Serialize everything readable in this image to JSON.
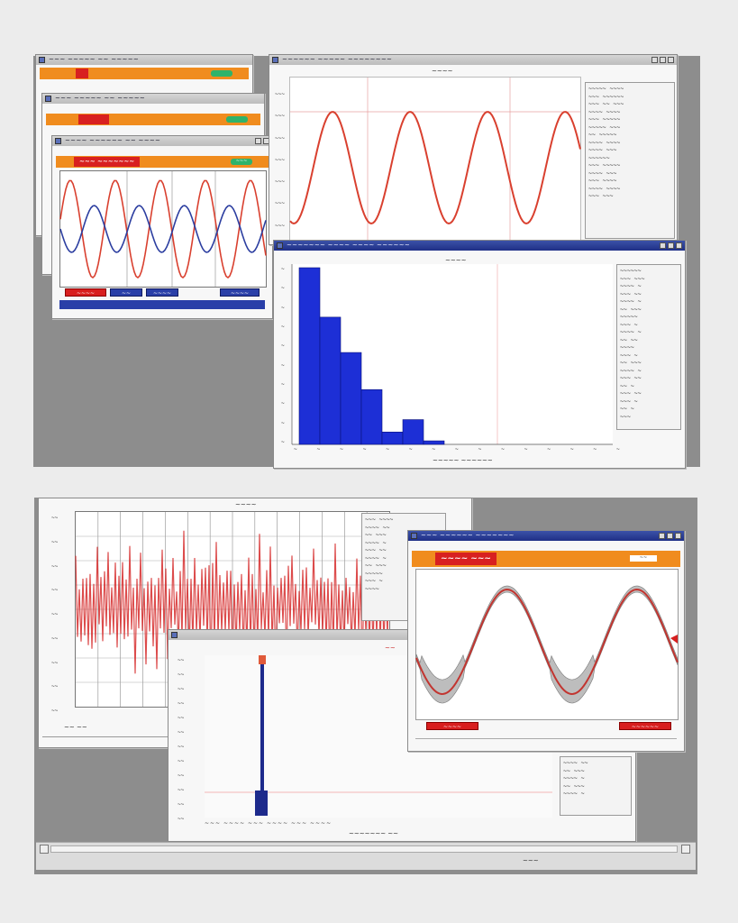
{
  "top_screen": {
    "stacked_windows": [
      {
        "title": "~~~ ~~~~~ ~~ ~~~~~"
      },
      {
        "title": "~~~ ~~~~~ ~~ ~~~~~"
      },
      {
        "title": "~~~ ~~~~~ ~~ ~~~~~"
      }
    ],
    "front_window": {
      "title": "~~~~ ~~~~~~ ~~ ~~~~",
      "header_label": "~~~ ~~~~~~~",
      "header_badge": "~~~",
      "bottom_buttons": [
        "~~~~",
        "~~",
        "~~~~",
        "~~~~"
      ],
      "series_colors": [
        "#d9402f",
        "#2c3ea0"
      ]
    },
    "sine_window": {
      "title": "~~~~~~ ~~~~~ ~~~~~~~~",
      "caption": "~~~~",
      "series_color": "#d9402f",
      "y_ticks": [
        "~~~",
        "~~~",
        "~~~",
        "~~~",
        "~~~",
        "~~~",
        "~~~",
        "~~~"
      ]
    },
    "side_panel": {
      "lines": [
        "~~~~~ ~~~~",
        "~~~ ~~~~~~",
        "~~~ ~~ ~~~",
        "~~~~ ~~~~",
        "~~~ ~~~~~",
        "~~~~~ ~~~",
        "~~ ~~~~~",
        "~~~~ ~~~~",
        "~~~~ ~~~",
        "~~~~~~",
        "~~~ ~~~~~",
        "~~~~ ~~~",
        "~~~ ~~~~",
        "~~~~ ~~~~",
        "~~~ ~~~"
      ]
    },
    "histogram_window": {
      "title": "~~~~~~~ ~~~~ ~~~~ ~~~~~~",
      "caption": "~~~~",
      "xlabel": "~~~~~ ~~~~~~",
      "bar_color": "#1d2fd6",
      "y_ticks": [
        "~",
        "~",
        "~",
        "~",
        "~",
        "~",
        "~",
        "~",
        "~",
        "~"
      ],
      "x_ticks": [
        "~",
        "~",
        "~",
        "~",
        "~",
        "~",
        "~",
        "~",
        "~",
        "~",
        "~",
        "~",
        "~",
        "~",
        "~"
      ],
      "bars": [
        1.0,
        0.72,
        0.52,
        0.31,
        0.07,
        0.14,
        0.02
      ],
      "panel_lines": [
        "~~~~~~",
        "~~~ ~~~",
        "~~~~ ~",
        "~~~ ~~",
        "~~~~ ~",
        "~~ ~~~",
        "~~~~~",
        "~~~ ~",
        "~~~~ ~",
        "~~ ~~",
        "~~~~",
        "~~~ ~",
        "~~ ~~~",
        "~~~~ ~",
        "~~~ ~~",
        "~~ ~",
        "~~~ ~~",
        "~~~ ~",
        "~~ ~",
        "~~~"
      ]
    }
  },
  "bottom_screen": {
    "noise_window": {
      "caption": "~~~~",
      "y_ticks": [
        "~~",
        "~~",
        "~~",
        "~~",
        "~~",
        "~~",
        "~~",
        "~~",
        "~~"
      ],
      "footer_label": "~~ ~~",
      "series_color": "#d62b2b"
    },
    "noise_panel_lines": [
      "~~~ ~~~~",
      "~~~~ ~~",
      "~~ ~~~",
      "~~~~ ~",
      "~~~ ~~",
      "~~~~ ~",
      "~~ ~~~",
      "~~~~~",
      "~~~ ~",
      "~~~~"
    ],
    "orange_window": {
      "title": "~~~ ~~~~~~ ~~~~~~~",
      "header_label": "~~~~ ~~~",
      "header_badge": "~~",
      "left_button": "~~~~",
      "right_button": "~~~~~~",
      "series_color": "#c23530"
    },
    "spike_window": {
      "caption": "~~",
      "xlabel": "~~~~~~~ ~~",
      "y_ticks": [
        "~~",
        "~~",
        "~~",
        "~~",
        "~~",
        "~~",
        "~~",
        "~~",
        "~~",
        "~~",
        "~~",
        "~~"
      ],
      "spike_color": "#1d2a8c"
    },
    "small_panel_lines": [
      "~~~~ ~~",
      "~~ ~~~",
      "~~~~ ~",
      "~~ ~~~",
      "~~~~ ~"
    ],
    "status_text": "~~~",
    "bottom_axis_label": "~~~ ~~~~ ~~~ ~~~~ ~~~ ~~~~"
  }
}
